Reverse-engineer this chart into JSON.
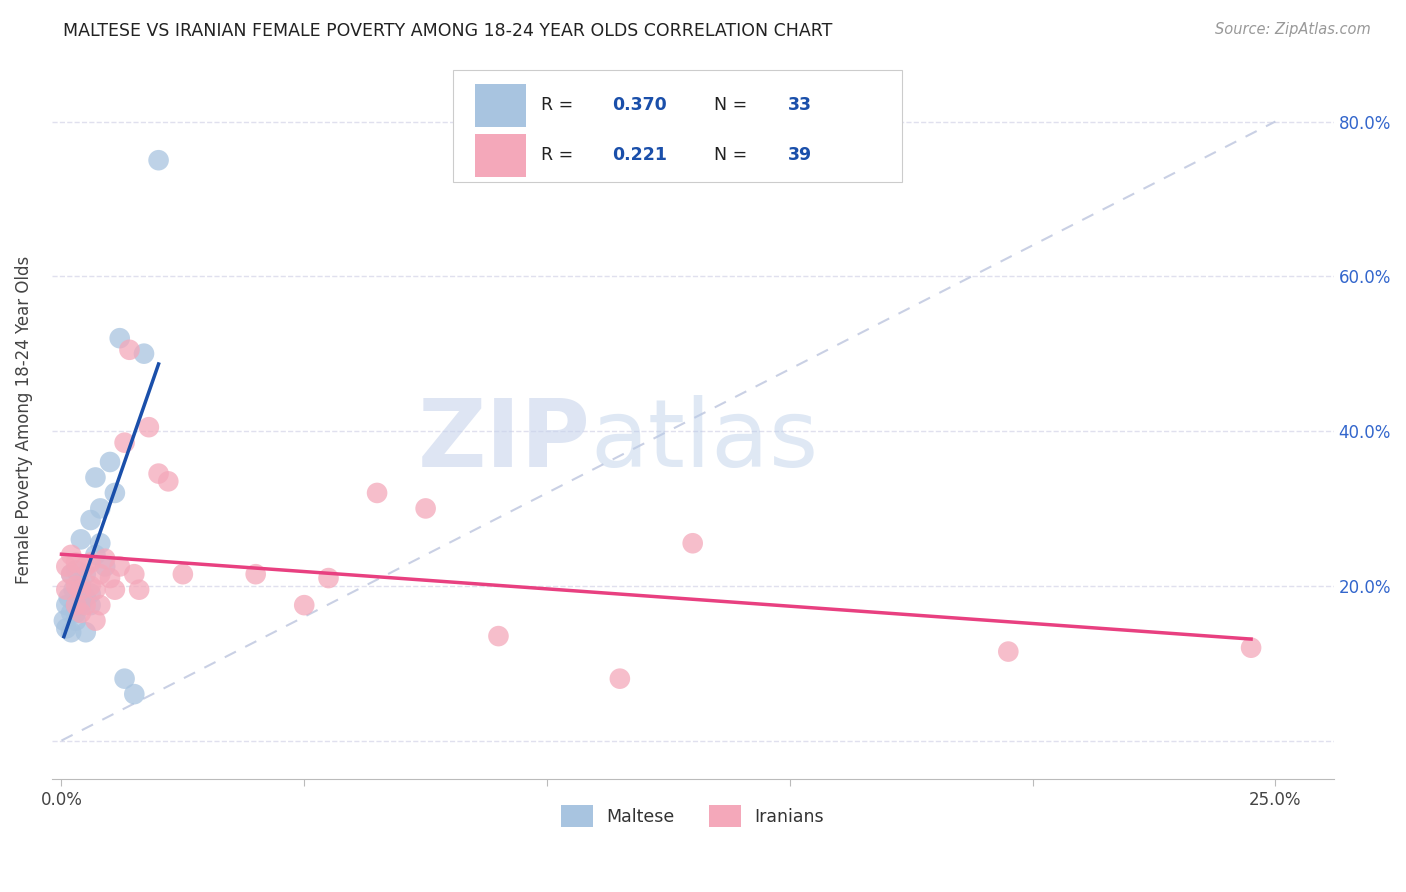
{
  "title": "MALTESE VS IRANIAN FEMALE POVERTY AMONG 18-24 YEAR OLDS CORRELATION CHART",
  "source": "Source: ZipAtlas.com",
  "ylabel": "Female Poverty Among 18-24 Year Olds",
  "xlim": [
    -0.002,
    0.262
  ],
  "ylim": [
    -0.05,
    0.88
  ],
  "x_tick_positions": [
    0.0,
    0.05,
    0.1,
    0.15,
    0.2,
    0.25
  ],
  "x_tick_labels": [
    "0.0%",
    "",
    "",
    "",
    "",
    "25.0%"
  ],
  "y_tick_positions": [
    0.0,
    0.2,
    0.4,
    0.6,
    0.8
  ],
  "y_tick_labels": [
    "",
    "20.0%",
    "40.0%",
    "60.0%",
    "80.0%"
  ],
  "maltese_R": "0.370",
  "maltese_N": "33",
  "iranian_R": "0.221",
  "iranian_N": "39",
  "maltese_color": "#a8c4e0",
  "maltese_line_color": "#1a4faa",
  "iranian_color": "#f4a8ba",
  "iranian_line_color": "#e84080",
  "diagonal_color": "#c0c8e0",
  "watermark_zip": "ZIP",
  "watermark_atlas": "atlas",
  "background_color": "#ffffff",
  "grid_color": "#e0e0ee",
  "legend_R_color": "#1a4faa",
  "legend_N_color": "#1a4faa",
  "maltese_x": [
    0.0005,
    0.001,
    0.001,
    0.0015,
    0.002,
    0.002,
    0.002,
    0.0025,
    0.003,
    0.003,
    0.003,
    0.003,
    0.004,
    0.004,
    0.004,
    0.005,
    0.005,
    0.005,
    0.006,
    0.006,
    0.006,
    0.007,
    0.007,
    0.008,
    0.008,
    0.009,
    0.01,
    0.011,
    0.012,
    0.013,
    0.015,
    0.017,
    0.02
  ],
  "maltese_y": [
    0.155,
    0.145,
    0.175,
    0.185,
    0.165,
    0.215,
    0.14,
    0.195,
    0.155,
    0.175,
    0.22,
    0.165,
    0.2,
    0.26,
    0.175,
    0.185,
    0.215,
    0.14,
    0.19,
    0.175,
    0.285,
    0.24,
    0.34,
    0.3,
    0.255,
    0.225,
    0.36,
    0.32,
    0.52,
    0.08,
    0.06,
    0.5,
    0.75
  ],
  "iranian_x": [
    0.001,
    0.001,
    0.002,
    0.002,
    0.003,
    0.003,
    0.003,
    0.004,
    0.004,
    0.005,
    0.005,
    0.006,
    0.006,
    0.007,
    0.007,
    0.008,
    0.008,
    0.009,
    0.01,
    0.011,
    0.012,
    0.013,
    0.014,
    0.015,
    0.016,
    0.018,
    0.02,
    0.022,
    0.025,
    0.04,
    0.05,
    0.055,
    0.065,
    0.075,
    0.09,
    0.115,
    0.13,
    0.195,
    0.245
  ],
  "iranian_y": [
    0.225,
    0.195,
    0.215,
    0.24,
    0.2,
    0.175,
    0.23,
    0.195,
    0.165,
    0.225,
    0.175,
    0.2,
    0.23,
    0.195,
    0.155,
    0.215,
    0.175,
    0.235,
    0.21,
    0.195,
    0.225,
    0.385,
    0.505,
    0.215,
    0.195,
    0.405,
    0.345,
    0.335,
    0.215,
    0.215,
    0.175,
    0.21,
    0.32,
    0.3,
    0.135,
    0.08,
    0.255,
    0.115,
    0.12
  ]
}
